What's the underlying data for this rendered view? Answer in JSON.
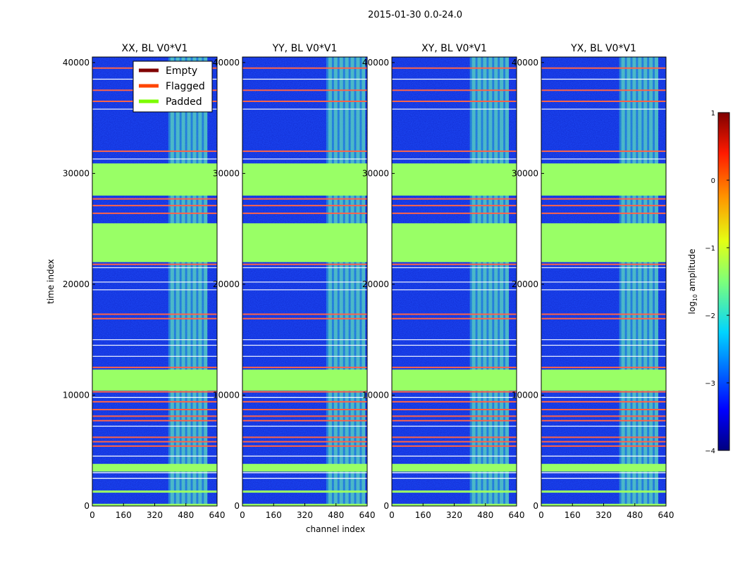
{
  "chart_data": {
    "type": "heatmap",
    "suptitle": "2015-01-30 0.0-24.0",
    "xlabel": "channel index",
    "ylabel": "time index",
    "xlim": [
      0,
      640
    ],
    "ylim": [
      0,
      40500
    ],
    "xticks": [
      0,
      160,
      320,
      480,
      640
    ],
    "yticks": [
      0,
      10000,
      20000,
      30000,
      40000
    ],
    "panels": [
      {
        "title": "XX, BL V0*V1"
      },
      {
        "title": "YY, BL V0*V1"
      },
      {
        "title": "XY, BL V0*V1"
      },
      {
        "title": "YX, BL V0*V1"
      }
    ],
    "legend": {
      "location": "top (first panel)",
      "entries": [
        {
          "label": "Empty",
          "color": "#800000"
        },
        {
          "label": "Flagged",
          "color": "#ff4500"
        },
        {
          "label": "Padded",
          "color": "#7cfc00"
        }
      ]
    },
    "padded_color": "#99ff66",
    "flagged_color": "#ff6347",
    "background_color": "#1f4fff",
    "padded_bands": [
      [
        30900,
        28000
      ],
      [
        25500,
        22000
      ],
      [
        12300,
        10400
      ],
      [
        3800,
        3100
      ],
      [
        1400,
        1200
      ],
      [
        200,
        0
      ]
    ],
    "flagged_lines": [
      39500,
      37500,
      36500,
      32000,
      27700,
      27100,
      26400,
      21800,
      17300,
      16900,
      12500,
      10300,
      9400,
      8700,
      8100,
      7700,
      6200,
      5800,
      5400
    ],
    "white_lines": [
      38500,
      35800,
      31300,
      21500,
      20200,
      19500,
      15000,
      14500,
      13500,
      9800,
      7200,
      4500,
      3000,
      2500
    ],
    "rfi_channel_range": [
      400,
      600
    ],
    "rfi_panel_offsets": [
      -10,
      30,
      0,
      0
    ],
    "colorbar": {
      "label": "log10 amplitude",
      "label_main": "log",
      "label_sub": "10",
      "label_rest": " amplitude",
      "range": [
        -4,
        1
      ],
      "ticks": [
        1,
        0,
        -1,
        -2,
        -3,
        -4
      ],
      "tick_labels": [
        "1",
        "0",
        "−1",
        "−2",
        "−3",
        "−4"
      ]
    }
  }
}
